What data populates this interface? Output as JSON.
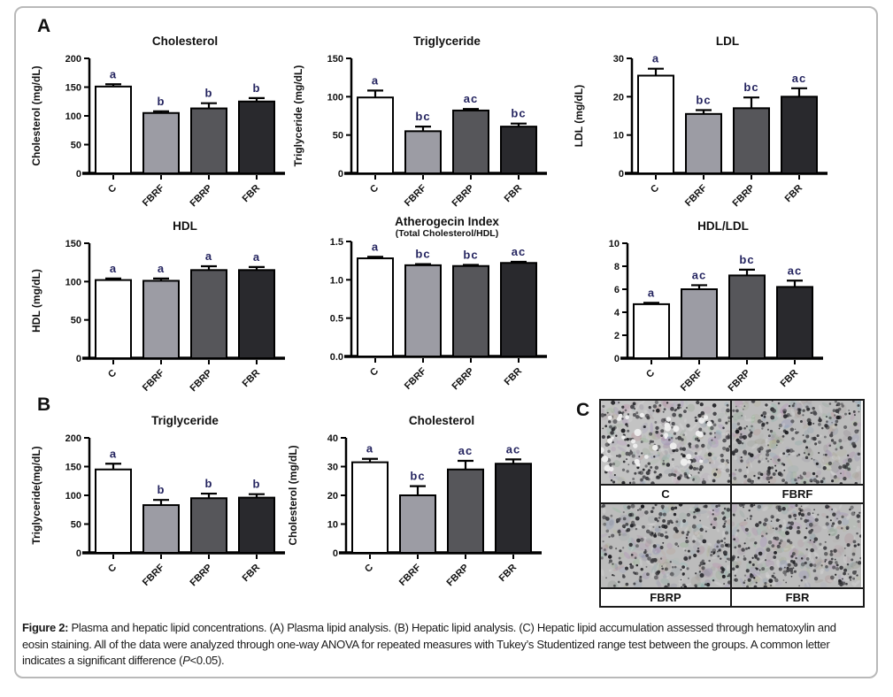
{
  "panels": {
    "a_label": "A",
    "b_label": "B",
    "c_label": "C"
  },
  "groups": [
    "C",
    "FBRF",
    "FBRP",
    "FBR"
  ],
  "colors": {
    "bar_fills": [
      "#ffffff",
      "#9c9ca4",
      "#56565a",
      "#29292d"
    ],
    "bar_stroke": "#000000",
    "axis": "#000000",
    "sig_letter": "#252560",
    "frame_border": "#b9b9b9"
  },
  "chart_data": [
    {
      "panel": "A",
      "type": "bar",
      "title": "Cholesterol",
      "subtitle": null,
      "ylabel": "Cholesterol (mg/dL)",
      "categories": [
        "C",
        "FBRF",
        "FBRP",
        "FBR"
      ],
      "values": [
        151,
        105,
        113,
        125
      ],
      "errors": [
        4,
        3,
        9,
        6
      ],
      "sig_letters": [
        "a",
        "b",
        "b",
        "b"
      ],
      "ylim": [
        0,
        200
      ],
      "yticks": [
        0,
        50,
        100,
        150,
        200
      ],
      "ytick_labels": [
        "0",
        "50",
        "100",
        "150",
        "200"
      ]
    },
    {
      "panel": "A",
      "type": "bar",
      "title": "Triglyceride",
      "subtitle": null,
      "ylabel": "Triglyceride (mg/dL)",
      "categories": [
        "C",
        "FBRF",
        "FBRP",
        "FBR"
      ],
      "values": [
        99,
        55,
        82,
        61
      ],
      "errors": [
        9,
        6,
        2,
        4
      ],
      "sig_letters": [
        "a",
        "bc",
        "ac",
        "bc"
      ],
      "ylim": [
        0,
        150
      ],
      "yticks": [
        0,
        50,
        100,
        150
      ],
      "ytick_labels": [
        "0",
        "50",
        "100",
        "150"
      ]
    },
    {
      "panel": "A",
      "type": "bar",
      "title": "LDL",
      "subtitle": null,
      "ylabel": "LDL (mg/dL)",
      "categories": [
        "C",
        "FBRF",
        "FBRP",
        "FBR"
      ],
      "values": [
        25.5,
        15.5,
        17,
        20
      ],
      "errors": [
        1.8,
        1,
        2.8,
        2.2
      ],
      "sig_letters": [
        "a",
        "bc",
        "bc",
        "ac"
      ],
      "ylim": [
        0,
        30
      ],
      "yticks": [
        0,
        10,
        20,
        30
      ],
      "ytick_labels": [
        "0",
        "10",
        "20",
        "30"
      ]
    },
    {
      "panel": "A",
      "type": "bar",
      "title": "HDL",
      "subtitle": null,
      "ylabel": "HDL (mg/dL)",
      "categories": [
        "C",
        "FBRF",
        "FBRP",
        "FBR"
      ],
      "values": [
        102,
        101,
        115,
        115
      ],
      "errors": [
        2,
        3,
        5,
        4
      ],
      "sig_letters": [
        "a",
        "a",
        "a",
        "a"
      ],
      "ylim": [
        0,
        150
      ],
      "yticks": [
        0,
        50,
        100,
        150
      ],
      "ytick_labels": [
        "0",
        "50",
        "100",
        "150"
      ]
    },
    {
      "panel": "A",
      "type": "bar",
      "title": "Atherogecin Index",
      "subtitle": "(Total Cholesterol/HDL)",
      "ylabel": null,
      "categories": [
        "C",
        "FBRF",
        "FBRP",
        "FBR"
      ],
      "values": [
        1.28,
        1.19,
        1.18,
        1.22
      ],
      "errors": [
        0.02,
        0.015,
        0.015,
        0.015
      ],
      "sig_letters": [
        "a",
        "bc",
        "bc",
        "ac"
      ],
      "ylim": [
        0,
        1.5
      ],
      "yticks": [
        0,
        0.5,
        1.0,
        1.5
      ],
      "ytick_labels": [
        "0.0",
        "0.5",
        "1.0",
        "1.5"
      ]
    },
    {
      "panel": "A",
      "type": "bar",
      "title": "HDL/LDL",
      "subtitle": null,
      "ylabel": null,
      "categories": [
        "C",
        "FBRF",
        "FBRP",
        "FBR"
      ],
      "values": [
        4.7,
        6.0,
        7.2,
        6.2
      ],
      "errors": [
        0.12,
        0.35,
        0.5,
        0.55
      ],
      "sig_letters": [
        "a",
        "ac",
        "bc",
        "ac"
      ],
      "ylim": [
        0,
        10
      ],
      "yticks": [
        0,
        2,
        4,
        6,
        8,
        10
      ],
      "ytick_labels": [
        "0",
        "2",
        "4",
        "6",
        "8",
        "10"
      ]
    },
    {
      "panel": "B",
      "type": "bar",
      "title": "Triglyceride",
      "subtitle": null,
      "ylabel": "Triglyceride(mg/dL)",
      "categories": [
        "C",
        "FBRF",
        "FBRP",
        "FBR"
      ],
      "values": [
        145,
        83,
        95,
        96
      ],
      "errors": [
        10,
        9,
        8,
        6
      ],
      "sig_letters": [
        "a",
        "b",
        "b",
        "b"
      ],
      "ylim": [
        0,
        200
      ],
      "yticks": [
        0,
        50,
        100,
        150,
        200
      ],
      "ytick_labels": [
        "0",
        "50",
        "100",
        "150",
        "200"
      ]
    },
    {
      "panel": "B",
      "type": "bar",
      "title": "Cholesterol",
      "subtitle": null,
      "ylabel": "Cholesterol (mg/dL)",
      "categories": [
        "C",
        "FBRF",
        "FBRP",
        "FBR"
      ],
      "values": [
        31.5,
        20,
        29,
        31
      ],
      "errors": [
        1.2,
        3.2,
        3,
        1.5
      ],
      "sig_letters": [
        "a",
        "bc",
        "ac",
        "ac"
      ],
      "ylim": [
        0,
        40
      ],
      "yticks": [
        0,
        10,
        20,
        30,
        40
      ],
      "ytick_labels": [
        "0",
        "10",
        "20",
        "30",
        "40"
      ]
    }
  ],
  "histology": {
    "labels": [
      "C",
      "FBRF",
      "FBRP",
      "FBR"
    ]
  },
  "caption": {
    "label": "Figure 2:",
    "text1": " Plasma and hepatic lipid concentrations. (A) Plasma lipid analysis. (B) Hepatic lipid analysis. (C) Hepatic lipid accumulation assessed through hematoxylin and eosin staining. All of the data were analyzed through one-way ANOVA for repeated measures with Tukey’s Studentized range test between the groups. A common letter indicates a significant difference (",
    "p_italic": "P",
    "text2": "<0.05)."
  }
}
